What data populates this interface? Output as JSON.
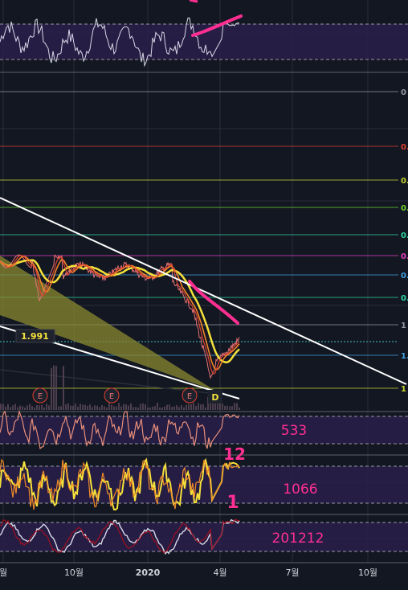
{
  "colors": {
    "background": "#131722",
    "panel_band": "#2a1f4a",
    "grid": "#2a2e39",
    "price_line": "#e57373",
    "ma_yellow": "#f5e13b",
    "ma_orange": "#f0842a",
    "ma_red": "#e04030",
    "trendline": "#ffffff",
    "wedge_fill": "#8a8a30",
    "annotation_pink": "#ff2f92",
    "osc_white": "#d8d8e8",
    "osc_salmon": "#e88f7a",
    "osc_yellow": "#f5e13b",
    "osc_orange": "#f08a2a",
    "osc_darkred": "#a01020"
  },
  "chart_data": {
    "type": "line",
    "x_tick_labels": [
      "월",
      "10월",
      "2020",
      "4월",
      "7월",
      "10월"
    ],
    "price_label": "1.991",
    "fib_level_labels": [
      {
        "text": "0",
        "color": "#9598a1"
      },
      {
        "text": "0.",
        "color": "#e04030"
      },
      {
        "text": "0.",
        "color": "#c6d630"
      },
      {
        "text": "0.",
        "color": "#6bd630"
      },
      {
        "text": "0.",
        "color": "#30d6a0"
      },
      {
        "text": "0.",
        "color": "#e040c0"
      },
      {
        "text": "0.",
        "color": "#40a0e0"
      },
      {
        "text": "0.",
        "color": "#30d6a0"
      },
      {
        "text": "1",
        "color": "#9598a1"
      },
      {
        "text": "1.",
        "color": "#40a0e0"
      },
      {
        "text": "1",
        "color": "#c6d630"
      }
    ],
    "event_markers": [
      "E",
      "E",
      "E"
    ],
    "dividend_marker": "D",
    "indicator_panels": [
      {
        "label": "533",
        "annotation": "12"
      },
      {
        "label": "1066",
        "annotation": "1"
      },
      {
        "label": "201212"
      }
    ]
  }
}
